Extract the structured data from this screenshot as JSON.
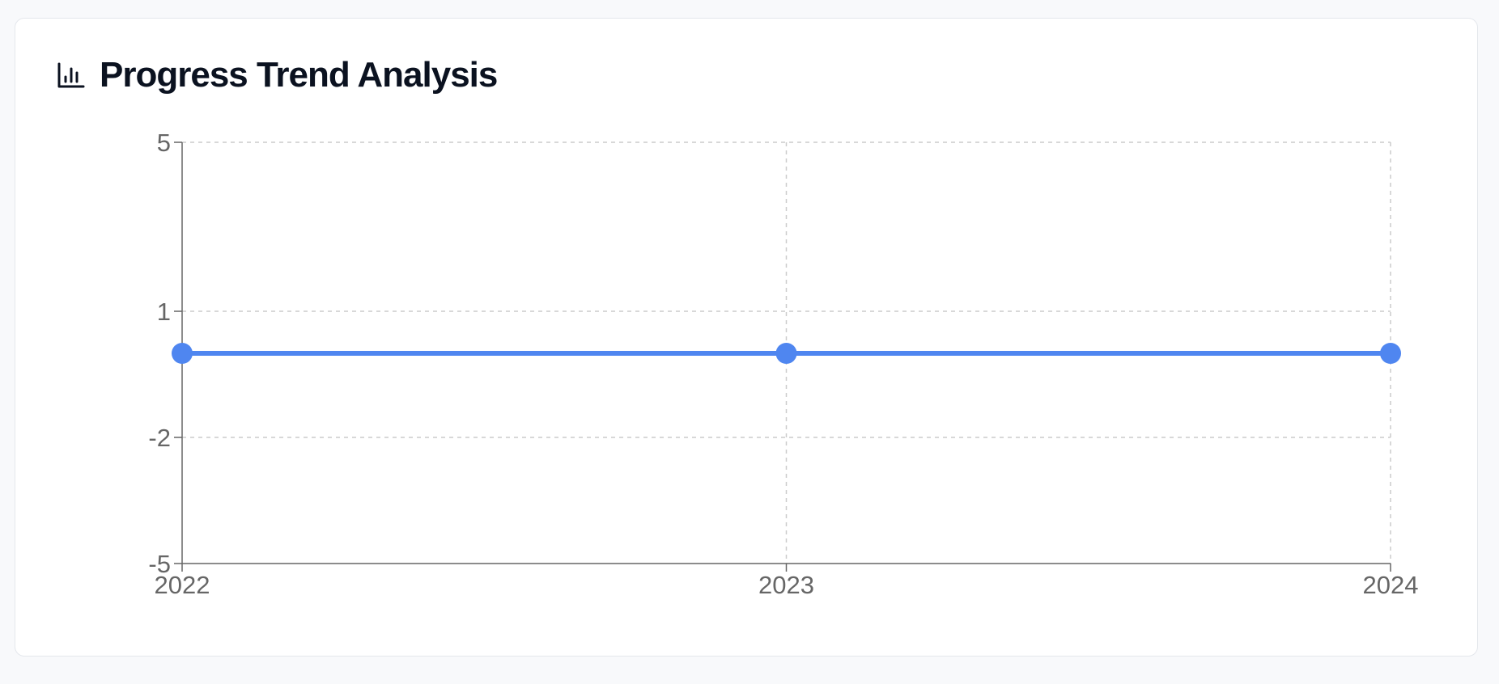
{
  "header": {
    "title": "Progress Trend Analysis",
    "icon": "bar-chart-icon"
  },
  "colors": {
    "series": "#4f86f0",
    "grid": "#cccccc",
    "axis": "#666666",
    "title": "#0b1220"
  },
  "chart_data": {
    "type": "line",
    "title": "Progress Trend Analysis",
    "xlabel": "",
    "ylabel": "",
    "x": [
      "2022",
      "2023",
      "2024"
    ],
    "series": [
      {
        "values": [
          0,
          0,
          0
        ]
      }
    ],
    "yticks": [
      -5,
      -2,
      1,
      5
    ],
    "ylim": [
      -5,
      5
    ],
    "grid": true,
    "legend": "none"
  }
}
